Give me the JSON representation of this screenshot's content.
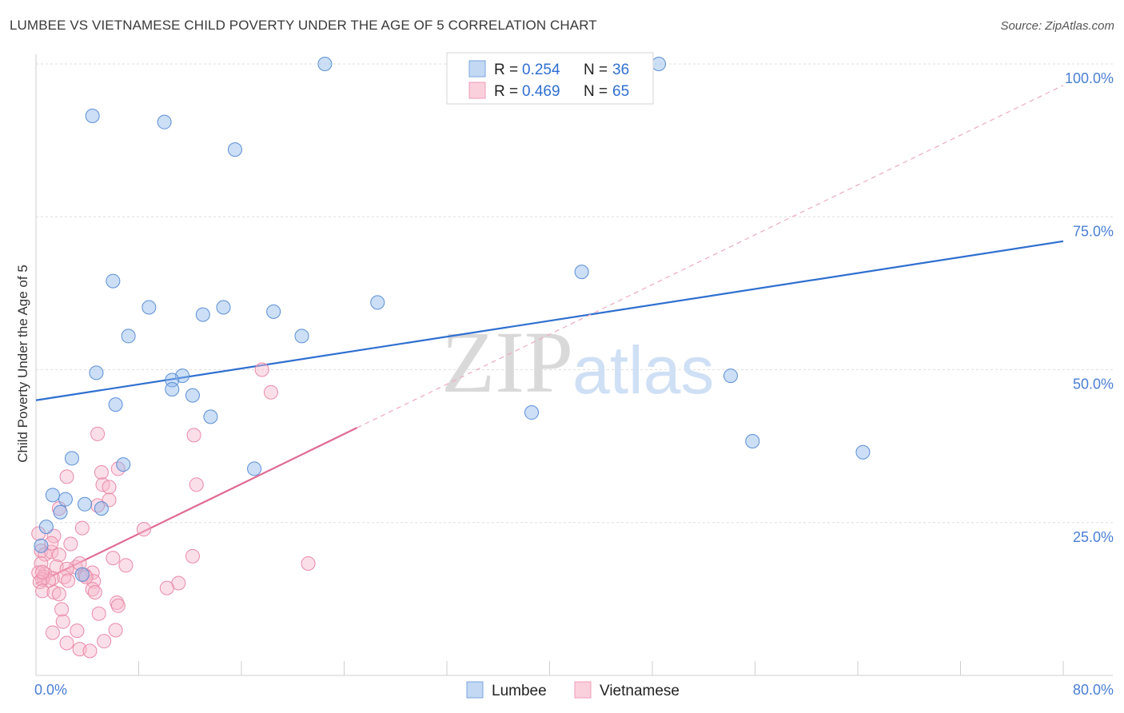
{
  "title": "LUMBEE VS VIETNAMESE CHILD POVERTY UNDER THE AGE OF 5 CORRELATION CHART",
  "source": "Source: ZipAtlas.com",
  "watermark": {
    "zip": "ZIP",
    "atlas": "atlas"
  },
  "chart_data": {
    "type": "scatter",
    "title": "LUMBEE VS VIETNAMESE CHILD POVERTY UNDER THE AGE OF 5 CORRELATION CHART",
    "xlabel": "",
    "ylabel": "Child Poverty Under the Age of 5",
    "xlim": [
      0,
      80
    ],
    "ylim": [
      0,
      100
    ],
    "x_tick_labels": [
      "0.0%",
      "80.0%"
    ],
    "y_tick_labels": [
      "25.0%",
      "50.0%",
      "75.0%",
      "100.0%"
    ],
    "y_ticks": [
      25,
      50,
      75,
      100
    ],
    "grid": true,
    "legend": {
      "position": "top-center",
      "entries": [
        {
          "name": "Lumbee",
          "r_label": "R =",
          "r": "0.254",
          "n_label": "N =",
          "n": "36"
        },
        {
          "name": "Vietnamese",
          "r_label": "R =",
          "r": "0.469",
          "n_label": "N =",
          "n": "65"
        }
      ]
    },
    "series": [
      {
        "name": "Lumbee",
        "color": "#8fb8ea",
        "stroke": "#5b8fd6",
        "trend_color": "#2f6fd0",
        "trend": {
          "x0": 0,
          "y0": 45,
          "x1": 80,
          "y1": 71
        },
        "points": [
          [
            22.5,
            100
          ],
          [
            48.5,
            100
          ],
          [
            4.4,
            91.5
          ],
          [
            10,
            90.5
          ],
          [
            15.5,
            86
          ],
          [
            6,
            64.5
          ],
          [
            42.5,
            66
          ],
          [
            8.8,
            60.2
          ],
          [
            14.6,
            60.2
          ],
          [
            13,
            59
          ],
          [
            18.5,
            59.5
          ],
          [
            26.6,
            61
          ],
          [
            7.2,
            55.5
          ],
          [
            20.7,
            55.5
          ],
          [
            11.4,
            49
          ],
          [
            4.7,
            49.5
          ],
          [
            10.6,
            48.3
          ],
          [
            10.6,
            46.8
          ],
          [
            12.2,
            45.8
          ],
          [
            6.2,
            44.3
          ],
          [
            13.6,
            42.3
          ],
          [
            38.6,
            43
          ],
          [
            54.1,
            49
          ],
          [
            55.8,
            38.3
          ],
          [
            64.4,
            36.5
          ],
          [
            17,
            33.8
          ],
          [
            2.8,
            35.5
          ],
          [
            6.8,
            34.5
          ],
          [
            1.3,
            29.5
          ],
          [
            2.3,
            28.8
          ],
          [
            3.8,
            28
          ],
          [
            5.1,
            27.3
          ],
          [
            1.9,
            26.7
          ],
          [
            0.8,
            24.3
          ],
          [
            0.4,
            21.2
          ],
          [
            3.6,
            16.5
          ]
        ]
      },
      {
        "name": "Vietnamese",
        "color": "#f6b8cb",
        "stroke": "#e98aa8",
        "trend_color": "#e06a92",
        "trend": {
          "x0": 0,
          "y0": 15,
          "x1": 25,
          "y1": 40.5
        },
        "trend_ext": {
          "x0": 25,
          "y0": 40.5,
          "x1": 80,
          "y1": 96.5
        },
        "points": [
          [
            17.6,
            50
          ],
          [
            18.3,
            46.3
          ],
          [
            4.8,
            39.5
          ],
          [
            12.3,
            39.3
          ],
          [
            2.4,
            32.5
          ],
          [
            5.1,
            33.2
          ],
          [
            6.4,
            33.8
          ],
          [
            12.5,
            31.2
          ],
          [
            5.2,
            31.2
          ],
          [
            5.7,
            30.8
          ],
          [
            5.7,
            28.7
          ],
          [
            4.8,
            27.8
          ],
          [
            1.8,
            27.3
          ],
          [
            8.4,
            23.9
          ],
          [
            3.6,
            24.1
          ],
          [
            1.4,
            22.8
          ],
          [
            0.4,
            20.4
          ],
          [
            0.7,
            19.8
          ],
          [
            1.2,
            20.2
          ],
          [
            1.8,
            19.7
          ],
          [
            2.7,
            21.5
          ],
          [
            1.2,
            21.6
          ],
          [
            6,
            19.2
          ],
          [
            12.2,
            19.5
          ],
          [
            21.2,
            18.3
          ],
          [
            7,
            18
          ],
          [
            3.1,
            17.7
          ],
          [
            3.4,
            18.3
          ],
          [
            0.4,
            18.3
          ],
          [
            1.6,
            17.8
          ],
          [
            2.4,
            17.4
          ],
          [
            4.4,
            16.8
          ],
          [
            0.7,
            16.6
          ],
          [
            0.2,
            16.8
          ],
          [
            0.6,
            16.1
          ],
          [
            1.3,
            15.9
          ],
          [
            2.2,
            16.1
          ],
          [
            3.8,
            16.4
          ],
          [
            0.5,
            15.7
          ],
          [
            1,
            15.5
          ],
          [
            0.3,
            15.3
          ],
          [
            4.5,
            15.4
          ],
          [
            2.5,
            15.5
          ],
          [
            11.1,
            15.1
          ],
          [
            10.2,
            14.3
          ],
          [
            4.4,
            14.1
          ],
          [
            0.5,
            13.8
          ],
          [
            1.4,
            13.6
          ],
          [
            1.8,
            13.3
          ],
          [
            4.6,
            13.6
          ],
          [
            6.3,
            11.9
          ],
          [
            6.4,
            11.4
          ],
          [
            4.9,
            10.1
          ],
          [
            2,
            10.8
          ],
          [
            2.1,
            8.8
          ],
          [
            3.2,
            7.3
          ],
          [
            1.3,
            7
          ],
          [
            6.2,
            7.4
          ],
          [
            2.4,
            5.3
          ],
          [
            5.3,
            5.6
          ],
          [
            3.4,
            4.3
          ],
          [
            4.2,
            4
          ],
          [
            0.2,
            23.2
          ],
          [
            0.5,
            16.9
          ],
          [
            3.9,
            16.1
          ]
        ]
      }
    ]
  }
}
